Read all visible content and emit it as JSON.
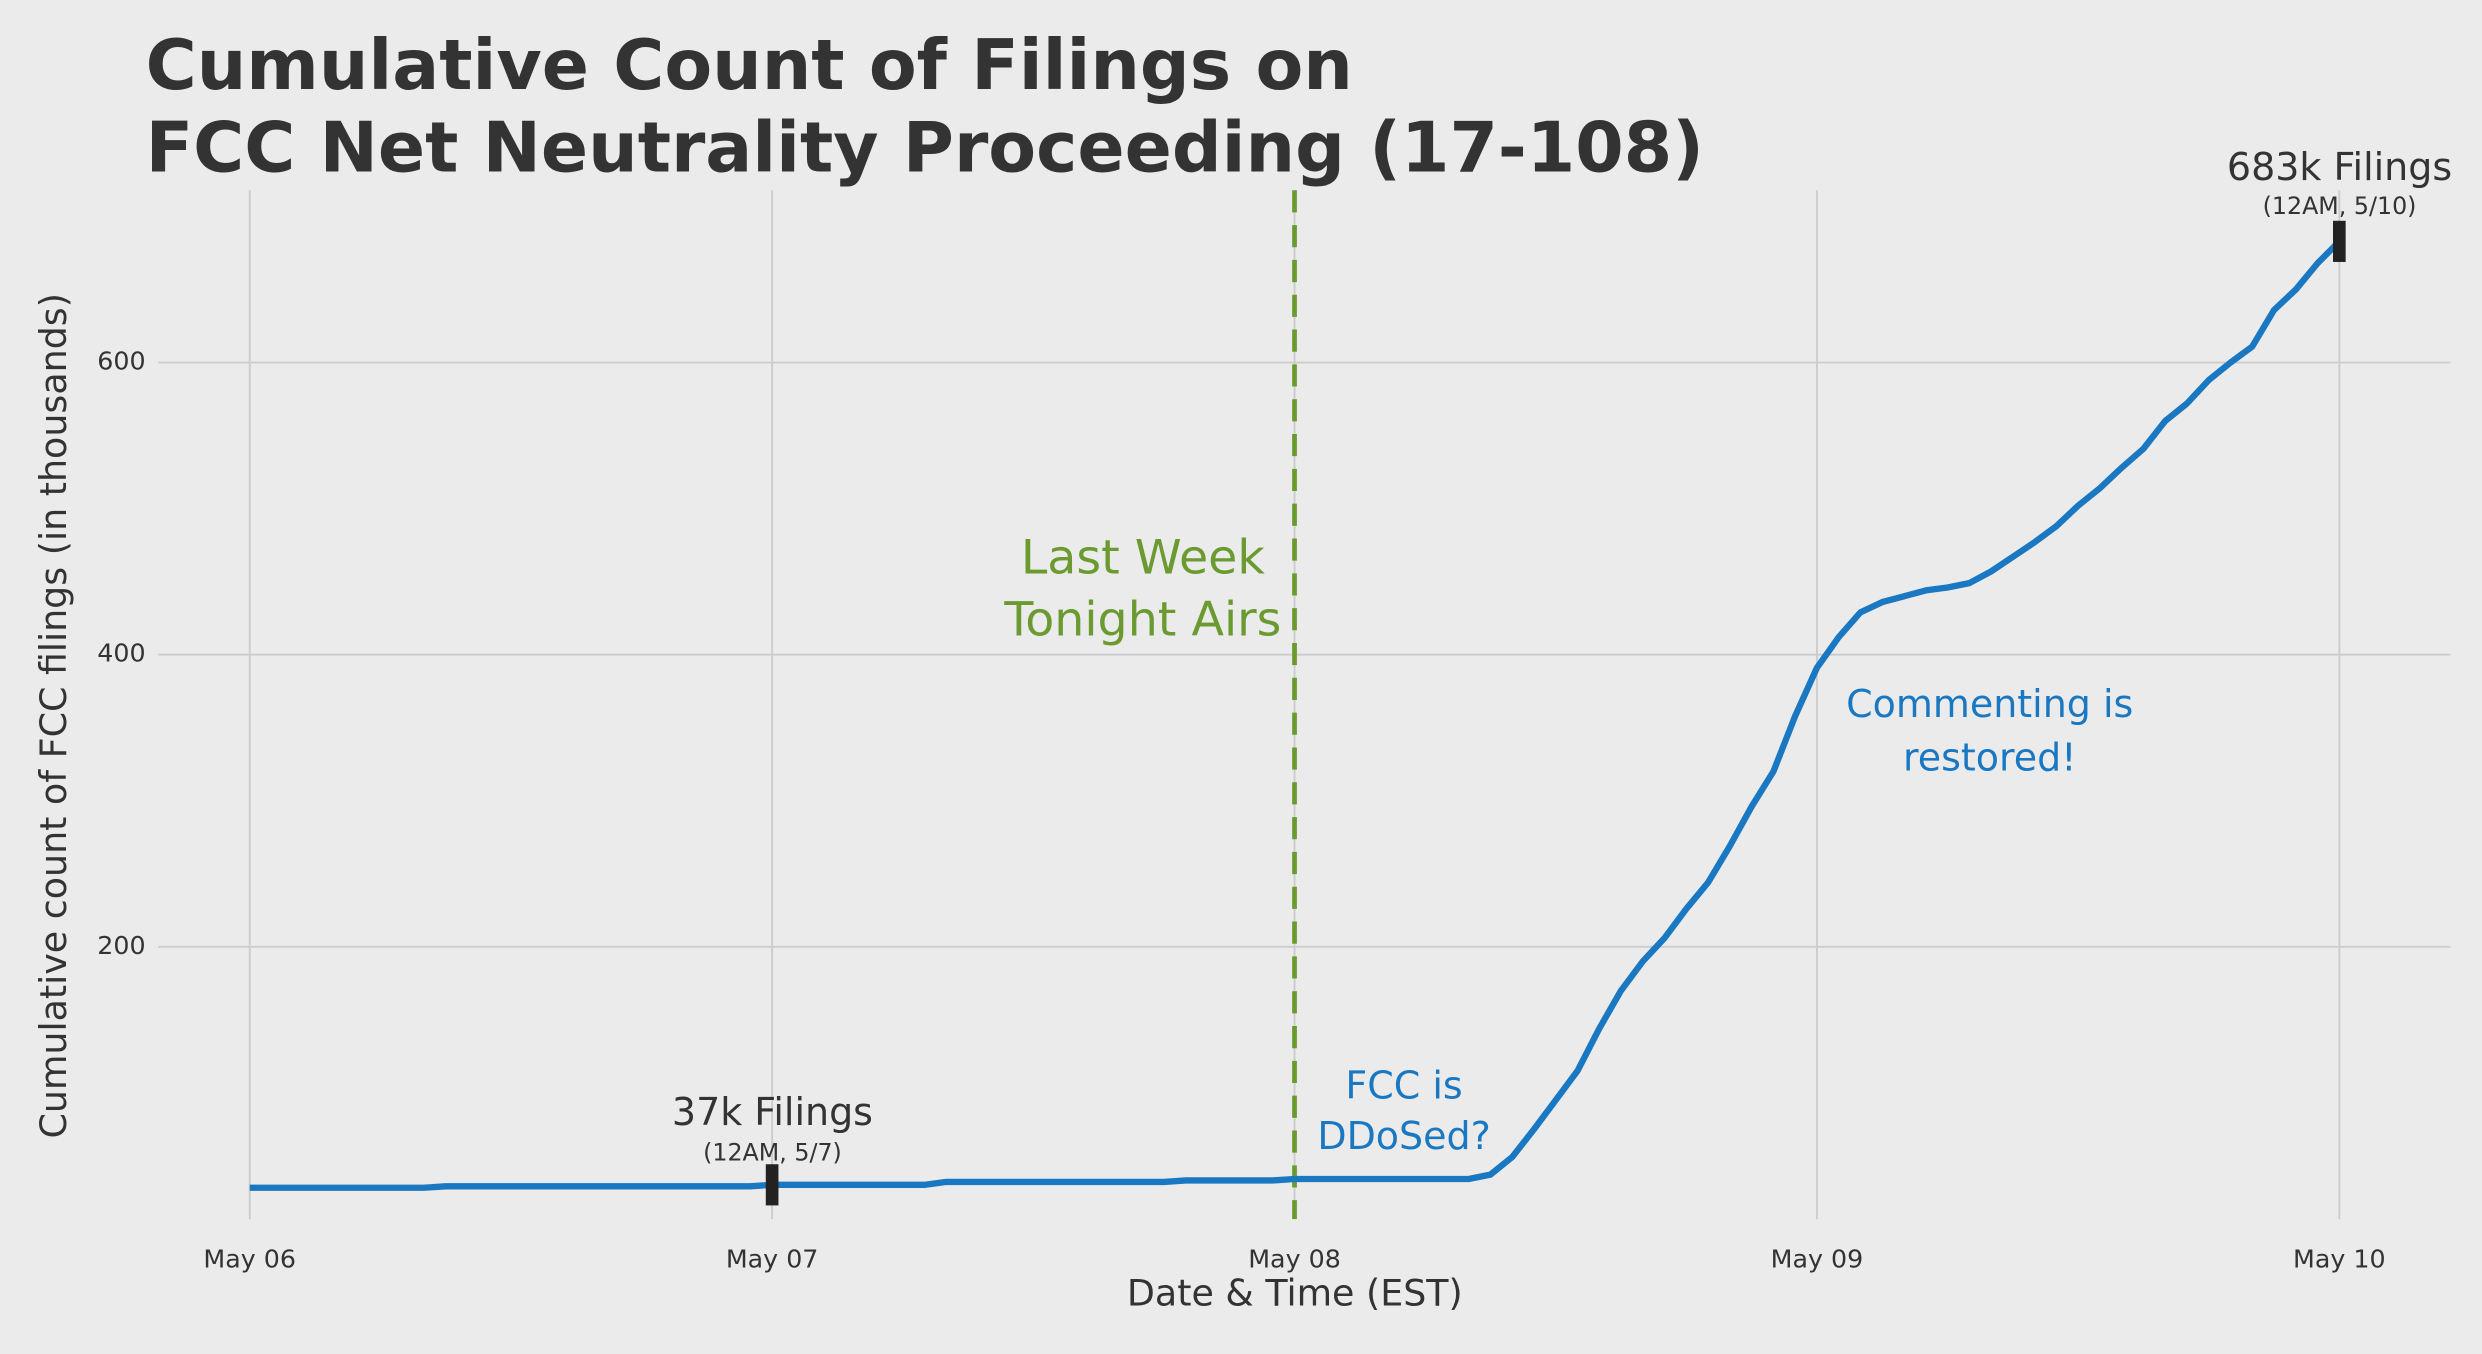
{
  "chart_data": {
    "type": "line",
    "title": [
      "Cumulative Count of Filings on",
      "FCC Net Neutrality Proceeding (17-108)"
    ],
    "xlabel": "Date & Time (EST)",
    "ylabel": "Cumulative count of FCC filings (in thousands)",
    "xlim": [
      -4.2,
      101.1
    ],
    "xticks": [
      {
        "value": 0,
        "label": "May 06"
      },
      {
        "value": 24,
        "label": "May 07"
      },
      {
        "value": 48,
        "label": "May 08"
      },
      {
        "value": 72,
        "label": "May 09"
      },
      {
        "value": 96,
        "label": "May 10"
      }
    ],
    "ylim": [
      13.5,
      718
    ],
    "yticks": [
      200,
      400,
      600
    ],
    "grid": true,
    "x": [
      0,
      1,
      2,
      3,
      4,
      5,
      6,
      7,
      8,
      9,
      10,
      11,
      12,
      13,
      14,
      15,
      16,
      17,
      18,
      19,
      20,
      21,
      22,
      23,
      24,
      25,
      26,
      27,
      28,
      29,
      30,
      31,
      32,
      33,
      34,
      35,
      36,
      37,
      38,
      39,
      40,
      41,
      42,
      43,
      44,
      45,
      46,
      47,
      48,
      49,
      50,
      51,
      52,
      53,
      54,
      55,
      56,
      57,
      58,
      59,
      60,
      61,
      62,
      63,
      64,
      65,
      66,
      67,
      68,
      69,
      70,
      71,
      72,
      73,
      74,
      75,
      76,
      77,
      78,
      79,
      80,
      81,
      82,
      83,
      84,
      85,
      86,
      87,
      88,
      89,
      90,
      91,
      92,
      93,
      94,
      95,
      96
    ],
    "series": [
      {
        "color": "#1a78c2",
        "values": [
          35,
          35,
          35,
          35,
          35,
          35,
          35,
          35,
          35,
          36,
          36,
          36,
          36,
          36,
          36,
          36,
          36,
          36,
          36,
          36,
          36,
          36,
          36,
          36,
          37,
          37,
          37,
          37,
          37,
          37,
          37,
          37,
          39,
          39,
          39,
          39,
          39,
          39,
          39,
          39,
          39,
          39,
          39,
          40,
          40,
          40,
          40,
          40,
          41,
          41,
          41,
          41,
          41,
          41,
          41,
          41,
          41,
          44,
          56,
          75,
          95,
          115,
          144,
          170,
          190,
          206,
          226,
          244,
          269,
          296,
          320,
          358,
          391,
          412,
          429,
          436,
          440,
          444,
          446,
          449,
          457,
          467,
          477,
          488,
          502,
          514,
          528,
          541,
          560,
          572,
          588,
          600,
          611,
          636,
          650,
          668,
          683
        ]
      }
    ],
    "vline": {
      "value": 48,
      "color": "#6a9a30"
    },
    "annotations": [
      {
        "lines": [
          "37k Filings",
          "(12AM, 5/7)"
        ],
        "color": "#333333"
      },
      {
        "lines": [
          "683k Filings",
          "(12AM, 5/10)"
        ],
        "color": "#333333"
      },
      {
        "lines": [
          "Last Week",
          "Tonight Airs"
        ],
        "color": "#6a9a30"
      },
      {
        "lines": [
          "FCC is",
          "DDoSed?"
        ],
        "color": "#1a78c2"
      },
      {
        "lines": [
          "Commenting is",
          "restored!"
        ],
        "color": "#1a78c2"
      }
    ]
  }
}
